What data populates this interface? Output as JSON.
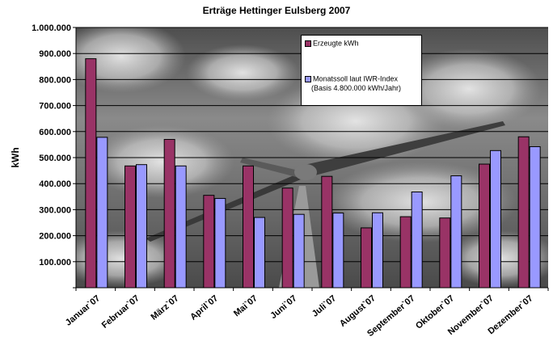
{
  "chart_data": {
    "type": "bar",
    "title": "Erträge Hettinger Eulsberg 2007",
    "xlabel": "",
    "ylabel": "kWh",
    "ylim": [
      0,
      1000000
    ],
    "yticks": [
      0,
      100000,
      200000,
      300000,
      400000,
      500000,
      600000,
      700000,
      800000,
      900000,
      1000000
    ],
    "ytick_labels": [
      "",
      "100.000",
      "200.000",
      "300.000",
      "400.000",
      "500.000",
      "600.000",
      "700.000",
      "800.000",
      "900.000",
      "1.000.000"
    ],
    "categories": [
      "Januar`07",
      "Februar`07",
      "März`07",
      "April`07",
      "Mai`07",
      "Juni`07",
      "Juli`07",
      "August`07",
      "September`07",
      "Oktober`07",
      "November`07",
      "Dezember`07"
    ],
    "series": [
      {
        "name": "Erzeugte kWh",
        "color": "#993366",
        "values": [
          880000,
          468000,
          570000,
          355000,
          468000,
          383000,
          428000,
          230000,
          273000,
          268000,
          475000,
          580000
        ]
      },
      {
        "name": "Monatssoll laut IWR-Index",
        "name_line2": "(Basis 4.800.000 kWh/Jahr)",
        "color": "#9999ff",
        "values": [
          578000,
          473000,
          468000,
          343000,
          270000,
          282000,
          287000,
          288000,
          368000,
          430000,
          527000,
          542000
        ]
      }
    ],
    "grid": true,
    "legend_position": "top-right",
    "background": "photo of wind turbine against cloudy sky (grayscale)"
  }
}
